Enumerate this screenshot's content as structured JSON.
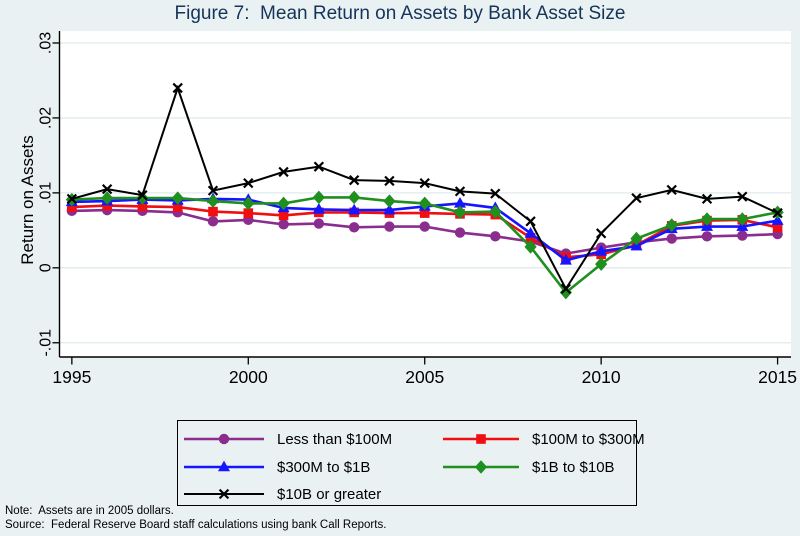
{
  "page": {
    "background": "#eaf1f3",
    "plot_background": "#ffffff",
    "gridline_color": "#dfeaee",
    "title_color": "#153459"
  },
  "notes": {
    "note": "Note:  Assets are in 2005 dollars.",
    "source": "Source:  Federal Reserve Board staff calculations using bank Call Reports."
  },
  "chart_data": {
    "type": "line",
    "title": "Figure 7:  Mean Return on Assets by Bank Asset Size",
    "xlabel": "",
    "ylabel": "Return on Assets",
    "grid": true,
    "legend_position": "bottom-box",
    "xlim": [
      1994.65,
      2015.38
    ],
    "ylim": [
      -0.0119,
      0.0316
    ],
    "xticks": [
      1995,
      2000,
      2005,
      2010,
      2015
    ],
    "yticks": [
      {
        "v": -0.01,
        "label": "-.01"
      },
      {
        "v": 0,
        "label": "0"
      },
      {
        "v": 0.01,
        "label": ".01"
      },
      {
        "v": 0.02,
        "label": ".02"
      },
      {
        "v": 0.03,
        "label": ".03"
      }
    ],
    "x": [
      1995,
      1996,
      1997,
      1998,
      1999,
      2000,
      2001,
      2002,
      2003,
      2004,
      2005,
      2006,
      2007,
      2008,
      2009,
      2010,
      2011,
      2012,
      2013,
      2014,
      2015
    ],
    "series": [
      {
        "name": "Less than $100M",
        "color": "#8b2d8e",
        "marker": "circle",
        "values": [
          0.0076,
          0.0077,
          0.0076,
          0.0074,
          0.0062,
          0.0064,
          0.0058,
          0.0059,
          0.0054,
          0.0055,
          0.0055,
          0.0047,
          0.0042,
          0.0035,
          0.0019,
          0.0027,
          0.0034,
          0.0039,
          0.0042,
          0.0043,
          0.0045
        ]
      },
      {
        "name": "$100M to $300M",
        "color": "#ef0e11",
        "marker": "square",
        "values": [
          0.0081,
          0.0083,
          0.0082,
          0.0081,
          0.0075,
          0.0073,
          0.007,
          0.0074,
          0.0074,
          0.0073,
          0.0073,
          0.0072,
          0.0071,
          0.004,
          0.0014,
          0.0018,
          0.003,
          0.0056,
          0.0063,
          0.0064,
          0.0054
        ]
      },
      {
        "name": "$300M to $1B",
        "color": "#1515ff",
        "marker": "triangle",
        "values": [
          0.0088,
          0.0089,
          0.0091,
          0.009,
          0.0092,
          0.0091,
          0.008,
          0.0078,
          0.0077,
          0.0077,
          0.0082,
          0.0086,
          0.008,
          0.0046,
          0.001,
          0.0022,
          0.0029,
          0.0052,
          0.0055,
          0.0055,
          0.0063
        ]
      },
      {
        "name": "$1B to $10B",
        "color": "#1f8f1f",
        "marker": "diamond",
        "values": [
          0.0091,
          0.0093,
          0.0093,
          0.0093,
          0.0089,
          0.0086,
          0.0086,
          0.0094,
          0.0094,
          0.0089,
          0.0086,
          0.0074,
          0.0075,
          0.0028,
          -0.0033,
          0.0005,
          0.0039,
          0.0057,
          0.0065,
          0.0065,
          0.0074
        ]
      },
      {
        "name": "$10B or greater",
        "color": "#000000",
        "marker": "x",
        "values": [
          0.0092,
          0.0105,
          0.0097,
          0.024,
          0.0103,
          0.0113,
          0.0128,
          0.0135,
          0.0117,
          0.0116,
          0.0113,
          0.0102,
          0.0099,
          0.0062,
          -0.0028,
          0.0046,
          0.0093,
          0.0104,
          0.0092,
          0.0095,
          0.0073
        ]
      }
    ]
  }
}
